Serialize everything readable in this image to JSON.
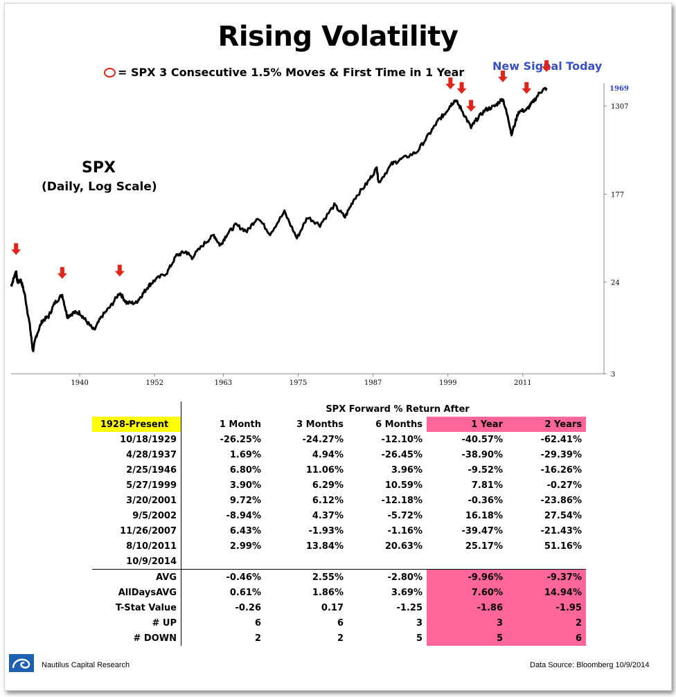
{
  "header": {
    "title": "Rising Volatility",
    "legend_text": "= SPX 3 Consecutive 1.5% Moves & First Time in 1 Year",
    "new_signal": "New Signal Today",
    "series_label": "SPX",
    "series_sub": "(Daily, Log Scale)"
  },
  "colors": {
    "arrow": "#e0261b",
    "signal_text": "#3b4fc4",
    "highlight_yellow": "#ffff00",
    "highlight_pink": "#ff6699",
    "line": "#000000"
  },
  "chart_data": {
    "type": "line",
    "title": "Rising Volatility",
    "scale": "log",
    "x_ticks": [
      "1940",
      "1952",
      "1963",
      "1975",
      "1987",
      "1999",
      "2011"
    ],
    "y_ticks": [
      "3",
      "24",
      "177",
      "1307"
    ],
    "last_value_label": "1969",
    "ylim": [
      3,
      2200
    ],
    "xlim": [
      1929,
      2024
    ],
    "series": [
      {
        "values": [
          [
            1929.0,
            22
          ],
          [
            1929.5,
            27
          ],
          [
            1929.8,
            31
          ],
          [
            1930.0,
            24
          ],
          [
            1930.6,
            25
          ],
          [
            1931.2,
            18
          ],
          [
            1932.0,
            9
          ],
          [
            1932.5,
            5
          ],
          [
            1933.0,
            7
          ],
          [
            1934.0,
            10
          ],
          [
            1935.0,
            11
          ],
          [
            1936.0,
            15
          ],
          [
            1937.2,
            18
          ],
          [
            1938.0,
            11
          ],
          [
            1939.0,
            12
          ],
          [
            1940.0,
            12
          ],
          [
            1941.0,
            10
          ],
          [
            1942.3,
            8
          ],
          [
            1943.5,
            11
          ],
          [
            1945.0,
            14
          ],
          [
            1946.4,
            19
          ],
          [
            1947.5,
            15
          ],
          [
            1949.0,
            15
          ],
          [
            1950.0,
            18
          ],
          [
            1951.0,
            22
          ],
          [
            1952.0,
            25
          ],
          [
            1954.0,
            30
          ],
          [
            1955.5,
            44
          ],
          [
            1957.0,
            48
          ],
          [
            1958.0,
            42
          ],
          [
            1960.0,
            58
          ],
          [
            1961.5,
            70
          ],
          [
            1962.5,
            55
          ],
          [
            1963.5,
            70
          ],
          [
            1965.0,
            88
          ],
          [
            1966.8,
            76
          ],
          [
            1968.5,
            105
          ],
          [
            1970.5,
            72
          ],
          [
            1972.8,
            118
          ],
          [
            1974.8,
            65
          ],
          [
            1976.5,
            105
          ],
          [
            1978.5,
            88
          ],
          [
            1980.8,
            138
          ],
          [
            1982.5,
            105
          ],
          [
            1984.0,
            160
          ],
          [
            1986.0,
            225
          ],
          [
            1987.6,
            320
          ],
          [
            1987.9,
            230
          ],
          [
            1990.0,
            350
          ],
          [
            1991.5,
            390
          ],
          [
            1994.0,
            460
          ],
          [
            1996.0,
            690
          ],
          [
            1997.5,
            950
          ],
          [
            1998.5,
            1100
          ],
          [
            1999.4,
            1330
          ],
          [
            2000.2,
            1500
          ],
          [
            2001.2,
            1200
          ],
          [
            2002.7,
            800
          ],
          [
            2003.5,
            950
          ],
          [
            2005.0,
            1200
          ],
          [
            2006.5,
            1300
          ],
          [
            2007.8,
            1560
          ],
          [
            2008.8,
            900
          ],
          [
            2009.2,
            680
          ],
          [
            2010.3,
            1150
          ],
          [
            2011.6,
            1200
          ],
          [
            2012.5,
            1400
          ],
          [
            2013.8,
            1800
          ],
          [
            2014.8,
            1969
          ]
        ]
      }
    ],
    "signals": [
      1929.8,
      1937.2,
      1946.4,
      1999.4,
      2001.2,
      2002.7,
      2007.8,
      2011.6,
      2014.8
    ]
  },
  "table": {
    "group_header": "SPX Forward % Return After",
    "period_label": "1928-Present",
    "columns": [
      "1 Month",
      "3 Months",
      "6 Months",
      "1 Year",
      "2 Years"
    ],
    "rows": [
      [
        "10/18/1929",
        "-26.25%",
        "-24.27%",
        "-12.10%",
        "-40.57%",
        "-62.41%"
      ],
      [
        "4/28/1937",
        "1.69%",
        "4.94%",
        "-26.45%",
        "-38.90%",
        "-29.39%"
      ],
      [
        "2/25/1946",
        "6.80%",
        "11.06%",
        "3.96%",
        "-9.52%",
        "-16.26%"
      ],
      [
        "5/27/1999",
        "3.90%",
        "6.29%",
        "10.59%",
        "7.81%",
        "-0.27%"
      ],
      [
        "3/20/2001",
        "9.72%",
        "6.12%",
        "-12.18%",
        "-0.36%",
        "-23.86%"
      ],
      [
        "9/5/2002",
        "-8.94%",
        "4.37%",
        "-5.72%",
        "16.18%",
        "27.54%"
      ],
      [
        "11/26/2007",
        "6.43%",
        "-1.93%",
        "-1.16%",
        "-39.47%",
        "-21.43%"
      ],
      [
        "8/10/2011",
        "2.99%",
        "13.84%",
        "20.63%",
        "25.17%",
        "51.16%"
      ],
      [
        "10/9/2014",
        "",
        "",
        "",
        "",
        ""
      ]
    ],
    "summary": [
      [
        "AVG",
        "-0.46%",
        "2.55%",
        "-2.80%",
        "-9.96%",
        "-9.37%"
      ],
      [
        "AllDaysAVG",
        "0.61%",
        "1.86%",
        "3.69%",
        "7.60%",
        "14.94%"
      ],
      [
        "T-Stat Value",
        "-0.26",
        "0.17",
        "-1.25",
        "-1.86",
        "-1.95"
      ],
      [
        "# UP",
        "6",
        "6",
        "3",
        "3",
        "2"
      ],
      [
        "# DOWN",
        "2",
        "2",
        "5",
        "5",
        "6"
      ]
    ]
  },
  "footer": {
    "company": "Nautilus Capital Research",
    "source": "Data Source: Bloomberg   10/9/2014"
  }
}
